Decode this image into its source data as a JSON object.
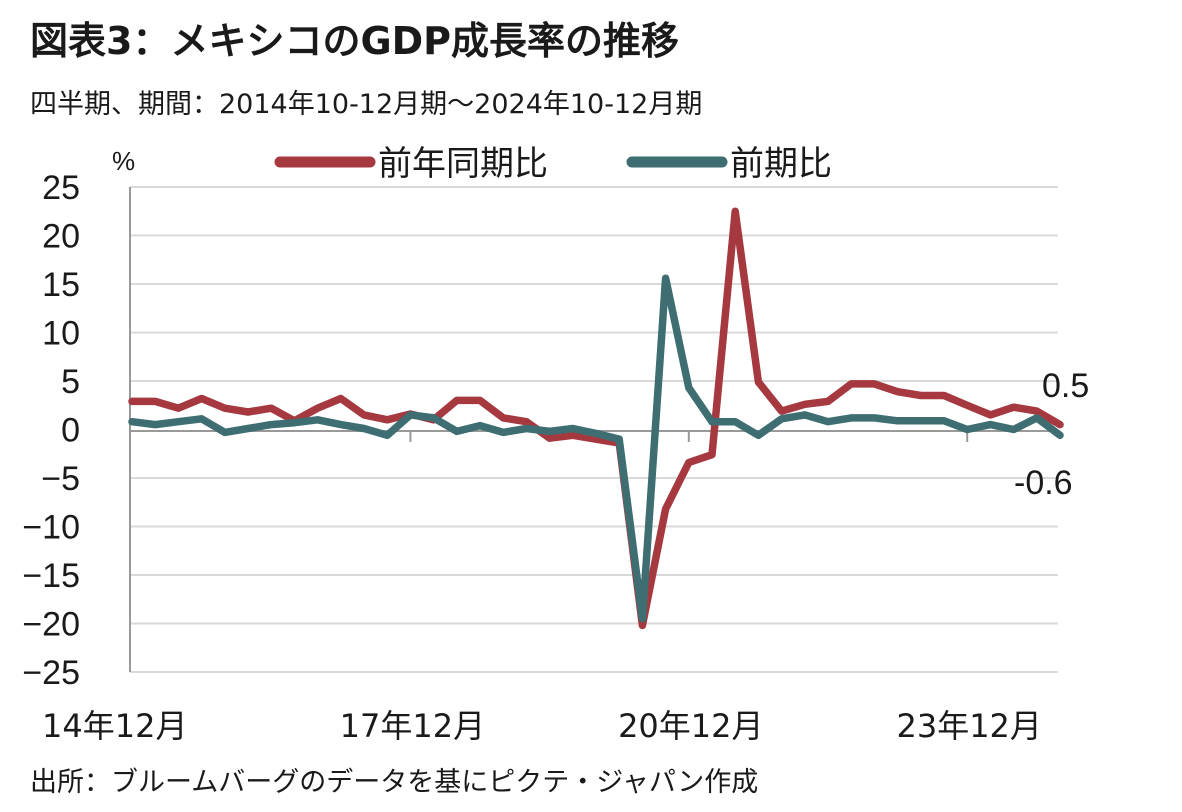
{
  "title": "図表3：メキシコのGDP成長率の推移",
  "subtitle": "四半期、期間：2014年10-12月期～2024年10-12月期",
  "source": "出所：ブルームバーグのデータを基にピクテ・ジャパン作成",
  "chart_data": {
    "type": "line",
    "ylabel": "%",
    "ylim": [
      -25,
      25
    ],
    "yticks": [
      25,
      20,
      15,
      10,
      5,
      0,
      -5,
      -10,
      -15,
      -20,
      -25
    ],
    "xtick_labels": [
      "14年12月",
      "17年12月",
      "20年12月",
      "23年12月"
    ],
    "xtick_indices": [
      0,
      12,
      24,
      36
    ],
    "end_labels": [
      "0.5",
      "-0.6"
    ],
    "grid": true,
    "legend_position": "top",
    "x": [
      "14年12月",
      "15年3月",
      "15年6月",
      "15年9月",
      "15年12月",
      "16年3月",
      "16年6月",
      "16年9月",
      "16年12月",
      "17年3月",
      "17年6月",
      "17年9月",
      "17年12月",
      "18年3月",
      "18年6月",
      "18年9月",
      "18年12月",
      "19年3月",
      "19年6月",
      "19年9月",
      "19年12月",
      "20年3月",
      "20年6月",
      "20年9月",
      "20年12月",
      "21年3月",
      "21年6月",
      "21年9月",
      "21年12月",
      "22年3月",
      "22年6月",
      "22年9月",
      "22年12月",
      "23年3月",
      "23年6月",
      "23年9月",
      "23年12月",
      "24年3月",
      "24年6月",
      "24年9月",
      "24年12月"
    ],
    "series": [
      {
        "name": "前年同期比",
        "color": "#a5393f",
        "values": [
          2.9,
          2.9,
          2.2,
          3.2,
          2.2,
          1.8,
          2.2,
          0.9,
          2.2,
          3.2,
          1.5,
          1.0,
          1.6,
          1.0,
          3.0,
          3.0,
          1.2,
          0.8,
          -0.9,
          -0.6,
          -1.0,
          -1.4,
          -20.2,
          -8.2,
          -3.4,
          -2.6,
          22.5,
          4.9,
          1.9,
          2.6,
          2.9,
          4.7,
          4.7,
          3.9,
          3.5,
          3.5,
          2.5,
          1.5,
          2.3,
          1.9,
          0.5
        ]
      },
      {
        "name": "前期比",
        "color": "#3e6e72",
        "values": [
          0.8,
          0.5,
          0.8,
          1.1,
          -0.3,
          0.1,
          0.5,
          0.7,
          1.0,
          0.5,
          0.1,
          -0.6,
          1.5,
          1.2,
          -0.2,
          0.4,
          -0.3,
          0.1,
          -0.2,
          0.1,
          -0.4,
          -1.0,
          -19.5,
          15.6,
          4.3,
          0.8,
          0.8,
          -0.6,
          1.1,
          1.5,
          0.8,
          1.2,
          1.2,
          0.9,
          0.9,
          0.9,
          0.0,
          0.5,
          0.0,
          1.2,
          -0.6
        ]
      }
    ]
  }
}
